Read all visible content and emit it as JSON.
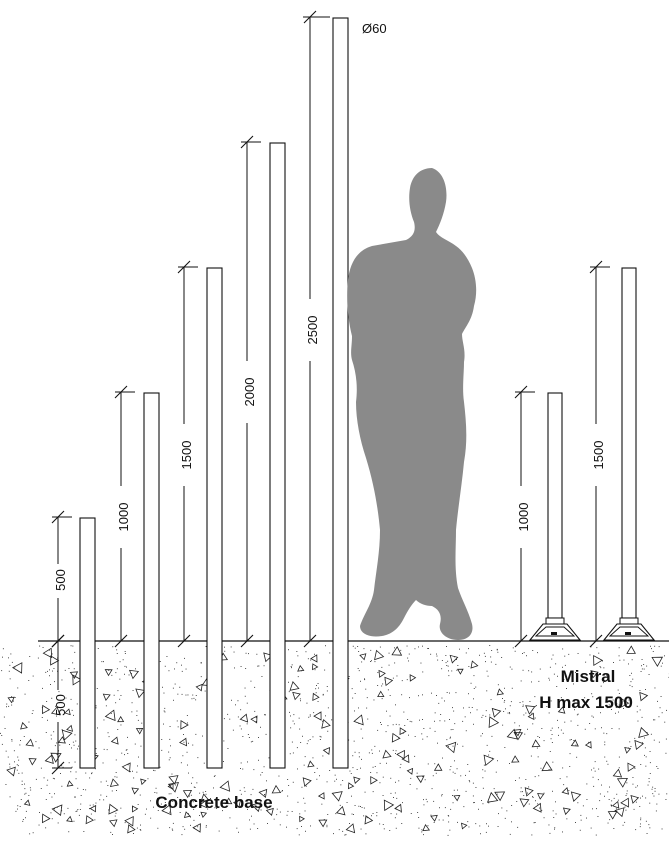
{
  "diameter_label": "Ø60",
  "above_ground_dims": [
    "500",
    "1000",
    "1500",
    "2000",
    "2500"
  ],
  "below_ground_dim": "500",
  "mistral_dims": [
    "1000",
    "1500"
  ],
  "mistral_title": "Mistral",
  "mistral_subtitle": "H max 1500",
  "concrete_label": "Concrete base",
  "colors": {
    "line": "#111111",
    "silhouette": "#8a8a8a",
    "speckle": "#222222"
  }
}
